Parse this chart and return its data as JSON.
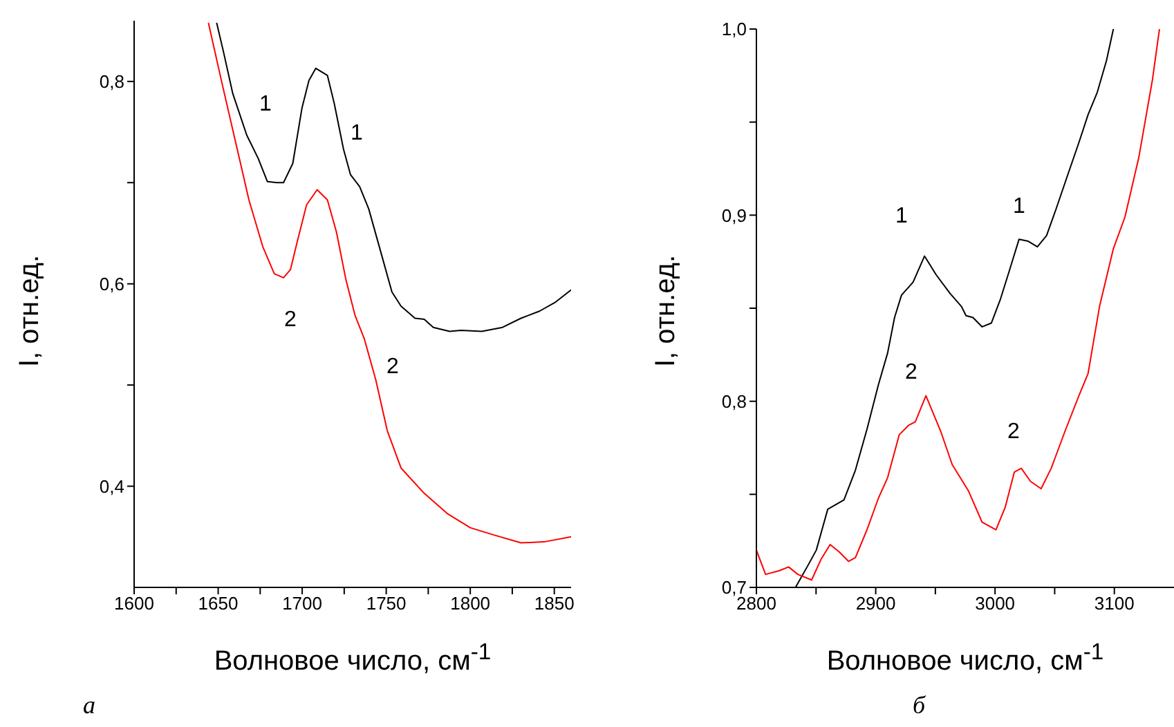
{
  "chart_data": [
    {
      "type": "line",
      "xlabel": "Волновое число, см$^{-1}$",
      "ylabel": "I, отн.ед.",
      "xlim": [
        1600,
        1860
      ],
      "ylim": [
        0.3,
        0.86
      ],
      "xticks": [
        1600,
        {
          "value": 1625,
          "label": null
        },
        1650,
        {
          "value": 1675,
          "label": null
        },
        1700,
        {
          "value": 1725,
          "label": null
        },
        1750,
        {
          "value": 1775,
          "label": null
        },
        1800,
        {
          "value": 1825,
          "label": null
        },
        1850
      ],
      "yticks": [
        {
          "value": 0.4,
          "label": "0,4"
        },
        {
          "value": 0.5,
          "label": null
        },
        {
          "value": 0.6,
          "label": "0,6"
        },
        {
          "value": 0.7,
          "label": null
        },
        {
          "value": 0.8,
          "label": "0,8"
        }
      ],
      "marker": "none",
      "line_style": "solid",
      "series": [
        {
          "name": "1",
          "color": "#000000",
          "x": [
            1649.1,
            1653.2,
            1658.7,
            1667,
            1673.8,
            1679.3,
            1684.8,
            1688.9,
            1694.4,
            1699.9,
            1704,
            1708.1,
            1715,
            1719.1,
            1724.6,
            1728.7,
            1734.2,
            1739.6,
            1746.5,
            1753.4,
            1758.8,
            1767.1,
            1772.6,
            1778,
            1787.7,
            1794.5,
            1806.9,
            1819.2,
            1830.2,
            1841.2,
            1850.8,
            1860
          ],
          "values": [
            0.858,
            0.829,
            0.788,
            0.747,
            0.724,
            0.701,
            0.7,
            0.7,
            0.719,
            0.774,
            0.801,
            0.813,
            0.806,
            0.778,
            0.733,
            0.708,
            0.696,
            0.674,
            0.633,
            0.592,
            0.578,
            0.566,
            0.565,
            0.557,
            0.553,
            0.554,
            0.553,
            0.557,
            0.566,
            0.573,
            0.582,
            0.594
          ]
        },
        {
          "name": "2",
          "color": "#ff0000",
          "x": [
            1644.2,
            1651.9,
            1660.1,
            1668.3,
            1676.5,
            1683.4,
            1688.9,
            1693,
            1697.1,
            1702.6,
            1708.9,
            1715,
            1720.4,
            1725.9,
            1731.4,
            1736.9,
            1743.8,
            1750.6,
            1758.8,
            1772.6,
            1786.3,
            1800,
            1813.7,
            1830.2,
            1843.9,
            1860
          ],
          "values": [
            0.858,
            0.801,
            0.742,
            0.683,
            0.637,
            0.61,
            0.606,
            0.614,
            0.642,
            0.678,
            0.693,
            0.683,
            0.651,
            0.605,
            0.569,
            0.546,
            0.505,
            0.455,
            0.418,
            0.393,
            0.373,
            0.359,
            0.352,
            0.344,
            0.345,
            0.35
          ]
        }
      ],
      "annotations": [
        "а"
      ]
    },
    {
      "type": "line",
      "xlabel": "Волновое число, см$^{-1}$",
      "ylabel": "I, отн.ед.",
      "xlim": [
        2800,
        3150
      ],
      "ylim": [
        0.7,
        1.0
      ],
      "xticks": [
        2800,
        {
          "value": 2850,
          "label": null
        },
        2900,
        {
          "value": 2950,
          "label": null
        },
        3000,
        {
          "value": 3050,
          "label": null
        },
        3100
      ],
      "yticks": [
        {
          "value": 0.7,
          "label": "0,7"
        },
        {
          "value": 0.75,
          "label": null
        },
        {
          "value": 0.8,
          "label": "0,8"
        },
        {
          "value": 0.85,
          "label": null
        },
        {
          "value": 0.9,
          "label": "0,9"
        },
        {
          "value": 0.95,
          "label": null
        },
        {
          "value": 1.0,
          "label": "1,0"
        }
      ],
      "marker": "none",
      "line_style": "solid",
      "series": [
        {
          "name": "1",
          "color": "#000000",
          "x": [
            2832.8,
            2842.5,
            2850.2,
            2859.8,
            2873.4,
            2883,
            2892.7,
            2902.3,
            2910,
            2915.8,
            2921.6,
            2931.3,
            2940.9,
            2950.6,
            2962.2,
            2971.8,
            2975.7,
            2981.5,
            2989.2,
            2996.9,
            3004.6,
            3012.4,
            3020.1,
            3027.8,
            3035.5,
            3043.2,
            3051,
            3060.6,
            3070.3,
            3078,
            3085.7,
            3093.4,
            3099.2
          ],
          "values": [
            0.7,
            0.711,
            0.72,
            0.742,
            0.747,
            0.763,
            0.785,
            0.809,
            0.826,
            0.845,
            0.857,
            0.864,
            0.878,
            0.868,
            0.858,
            0.851,
            0.846,
            0.845,
            0.84,
            0.842,
            0.855,
            0.871,
            0.887,
            0.886,
            0.883,
            0.889,
            0.903,
            0.921,
            0.939,
            0.954,
            0.966,
            0.983,
            1.0
          ]
        },
        {
          "name": "2",
          "color": "#ff0000",
          "x": [
            2800,
            2807.7,
            2819.3,
            2827,
            2834.7,
            2846.3,
            2854.1,
            2861.8,
            2869.5,
            2877.2,
            2883,
            2892.7,
            2902.3,
            2910,
            2919.7,
            2927.4,
            2933.2,
            2942.1,
            2954.4,
            2964.1,
            2977.6,
            2989.2,
            3000.8,
            3008.5,
            3016.2,
            3022,
            3029.7,
            3038.6,
            3047.1,
            3058.7,
            3070.3,
            3078,
            3087.6,
            3099.2,
            3108.9,
            3120.5,
            3132,
            3137.8
          ],
          "values": [
            0.72,
            0.707,
            0.709,
            0.711,
            0.707,
            0.704,
            0.715,
            0.723,
            0.719,
            0.714,
            0.716,
            0.731,
            0.748,
            0.759,
            0.782,
            0.787,
            0.789,
            0.803,
            0.784,
            0.766,
            0.752,
            0.735,
            0.731,
            0.743,
            0.762,
            0.764,
            0.757,
            0.753,
            0.764,
            0.784,
            0.803,
            0.815,
            0.851,
            0.882,
            0.899,
            0.931,
            0.973,
            1.0
          ]
        }
      ],
      "annotations": [
        "б"
      ]
    }
  ]
}
